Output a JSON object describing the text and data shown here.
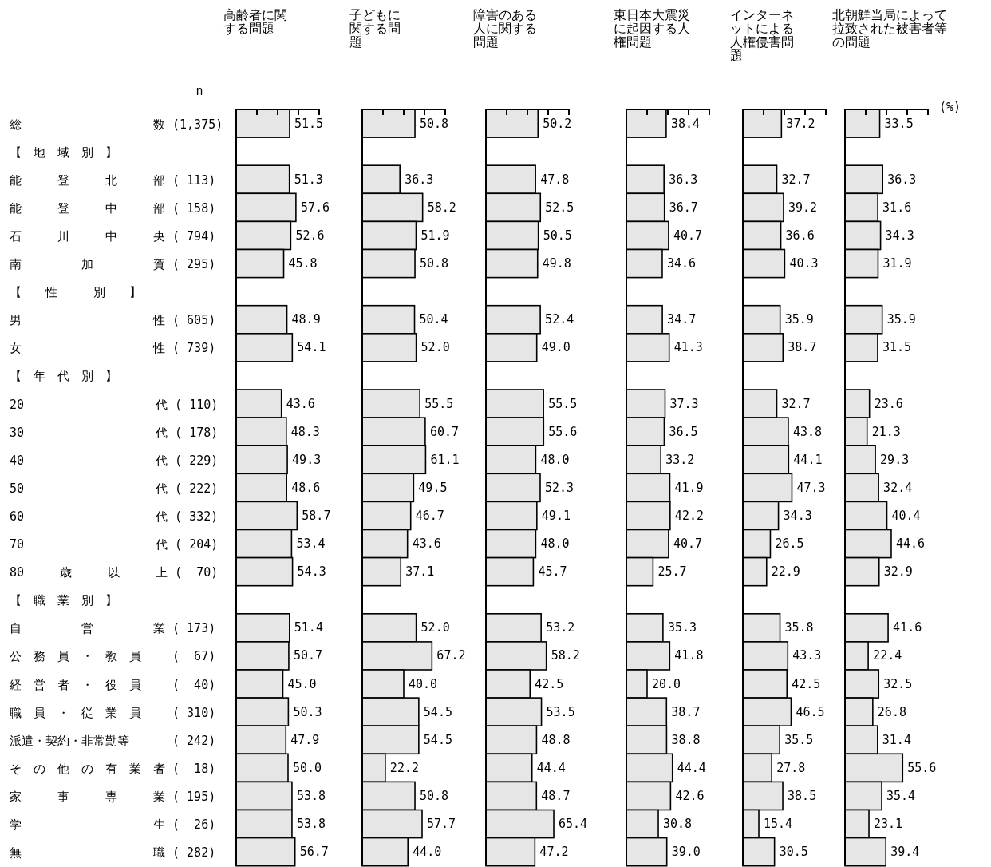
{
  "chart_data": [
    {
      "type": "bar",
      "orientation": "horizontal",
      "title": "高齢者に関する問題",
      "color": "#e6e6e6",
      "tick_labels": "y",
      "xlim": [
        0,
        80
      ],
      "xticks": [
        {
          "value": 0,
          "label": null
        },
        {
          "value": 20,
          "label": null
        },
        {
          "value": 40,
          "label": null
        },
        {
          "value": 60,
          "label": null
        },
        {
          "value": 80,
          "label": null
        }
      ],
      "annotations": [
        "n"
      ],
      "categories": [
        "総　　　　　　　　　　　数 (1,375)",
        "【　地　域　別　】",
        "能　　　登　　　北　　　部 ( 113)",
        "能　　　登　　　中　　　部 ( 158)",
        "石　　　川　　　中　　　央 ( 794)",
        "南　　　　　加　　　　　賀 ( 295)",
        "【　　性　　　別　　】",
        "男　　　　　　　　　　　性 ( 605)",
        "女　　　　　　　　　　　性 ( 739)",
        "【　年　代　別　】",
        "20　　　　　　　　　　　代 ( 110)",
        "30　　　　　　　　　　　代 ( 178)",
        "40　　　　　　　　　　　代 ( 229)",
        "50　　　　　　　　　　　代 ( 222)",
        "60　　　　　　　　　　　代 ( 332)",
        "70　　　　　　　　　　　代 ( 204)",
        "80　　　歳　　　以　　　上 (  70)",
        "【　職　業　別　】",
        "自　　　　　営　　　　　業 ( 173)",
        "公　務　員　・　教　員　　 (  67)",
        "経　営　者　・　役　員　　 (  40)",
        "職　員　・　従　業　員　　 ( 310)",
        "派遣・契約・非常勤等　　　 ( 242)",
        "そ　の　他　の　有　業　者 (  18)",
        "家　　　事　　　専　　　業 ( 195)",
        "学　　　　　　　　　　　生 (  26)",
        "無　　　　　　　　　　　職 ( 282)"
      ],
      "values": [
        51.5,
        null,
        51.3,
        57.6,
        52.6,
        45.8,
        null,
        48.9,
        54.1,
        null,
        43.6,
        48.3,
        49.3,
        48.6,
        58.7,
        53.4,
        54.3,
        null,
        51.4,
        50.7,
        45.0,
        50.3,
        47.9,
        50.0,
        53.8,
        53.8,
        56.7
      ],
      "value_labels": [
        "51.5",
        null,
        "51.3",
        "57.6",
        "52.6",
        "45.8",
        null,
        "48.9",
        "54.1",
        null,
        "43.6",
        "48.3",
        "49.3",
        "48.6",
        "58.7",
        "53.4",
        "54.3",
        null,
        "51.4",
        "50.7",
        "45.0",
        "50.3",
        "47.9",
        "50.0",
        "53.8",
        "53.8",
        "56.7"
      ]
    },
    {
      "type": "bar",
      "orientation": "horizontal",
      "title": "子どもに関する問題",
      "color": "#e6e6e6",
      "tick_labels": false,
      "xlim": [
        0,
        80
      ],
      "xticks": [
        {
          "value": 0,
          "label": null
        },
        {
          "value": 20,
          "label": null
        },
        {
          "value": 40,
          "label": null
        },
        {
          "value": 60,
          "label": null
        },
        {
          "value": 80,
          "label": null
        }
      ],
      "values": [
        50.8,
        null,
        36.3,
        58.2,
        51.9,
        50.8,
        null,
        50.4,
        52.0,
        null,
        55.5,
        60.7,
        61.1,
        49.5,
        46.7,
        43.6,
        37.1,
        null,
        52.0,
        67.2,
        40.0,
        54.5,
        54.5,
        22.2,
        50.8,
        57.7,
        44.0
      ],
      "value_labels": [
        "50.8",
        null,
        "36.3",
        "58.2",
        "51.9",
        "50.8",
        null,
        "50.4",
        "52.0",
        null,
        "55.5",
        "60.7",
        "61.1",
        "49.5",
        "46.7",
        "43.6",
        "37.1",
        null,
        "52.0",
        "67.2",
        "40.0",
        "54.5",
        "54.5",
        "22.2",
        "50.8",
        "57.7",
        "44.0"
      ]
    },
    {
      "type": "bar",
      "orientation": "horizontal",
      "title": "障害のある人に関する問題",
      "color": "#e6e6e6",
      "tick_labels": false,
      "xlim": [
        0,
        80
      ],
      "xticks": [
        {
          "value": 0,
          "label": null
        },
        {
          "value": 20,
          "label": null
        },
        {
          "value": 40,
          "label": null
        },
        {
          "value": 60,
          "label": null
        },
        {
          "value": 80,
          "label": null
        }
      ],
      "values": [
        50.2,
        null,
        47.8,
        52.5,
        50.5,
        49.8,
        null,
        52.4,
        49.0,
        null,
        55.5,
        55.6,
        48.0,
        52.3,
        49.1,
        48.0,
        45.7,
        null,
        53.2,
        58.2,
        42.5,
        53.5,
        48.8,
        44.4,
        48.7,
        65.4,
        47.2
      ],
      "value_labels": [
        "50.2",
        null,
        "47.8",
        "52.5",
        "50.5",
        "49.8",
        null,
        "52.4",
        "49.0",
        null,
        "55.5",
        "55.6",
        "48.0",
        "52.3",
        "49.1",
        "48.0",
        "45.7",
        null,
        "53.2",
        "58.2",
        "42.5",
        "53.5",
        "48.8",
        "44.4",
        "48.7",
        "65.4",
        "47.2"
      ]
    },
    {
      "type": "bar",
      "orientation": "horizontal",
      "title": "東日本大震災に起因する人権問題",
      "color": "#e6e6e6",
      "tick_labels": false,
      "xlim": [
        0,
        80
      ],
      "xticks": [
        {
          "value": 0,
          "label": null
        },
        {
          "value": 20,
          "label": null
        },
        {
          "value": 40,
          "label": null
        },
        {
          "value": 60,
          "label": null
        },
        {
          "value": 80,
          "label": null
        }
      ],
      "values": [
        38.4,
        null,
        36.3,
        36.7,
        40.7,
        34.6,
        null,
        34.7,
        41.3,
        null,
        37.3,
        36.5,
        33.2,
        41.9,
        42.2,
        40.7,
        25.7,
        null,
        35.3,
        41.8,
        20.0,
        38.7,
        38.8,
        44.4,
        42.6,
        30.8,
        39.0
      ],
      "value_labels": [
        "38.4",
        null,
        "36.3",
        "36.7",
        "40.7",
        "34.6",
        null,
        "34.7",
        "41.3",
        null,
        "37.3",
        "36.5",
        "33.2",
        "41.9",
        "42.2",
        "40.7",
        "25.7",
        null,
        "35.3",
        "41.8",
        "20.0",
        "38.7",
        "38.8",
        "44.4",
        "42.6",
        "30.8",
        "39.0"
      ]
    },
    {
      "type": "bar",
      "orientation": "horizontal",
      "title": "インターネットによる人権侵害問題",
      "color": "#e6e6e6",
      "tick_labels": false,
      "xlim": [
        0,
        80
      ],
      "xticks": [
        {
          "value": 0,
          "label": null
        },
        {
          "value": 20,
          "label": null
        },
        {
          "value": 40,
          "label": null
        },
        {
          "value": 60,
          "label": null
        },
        {
          "value": 80,
          "label": null
        }
      ],
      "values": [
        37.2,
        null,
        32.7,
        39.2,
        36.6,
        40.3,
        null,
        35.9,
        38.7,
        null,
        32.7,
        43.8,
        44.1,
        47.3,
        34.3,
        26.5,
        22.9,
        null,
        35.8,
        43.3,
        42.5,
        46.5,
        35.5,
        27.8,
        38.5,
        15.4,
        30.5
      ],
      "value_labels": [
        "37.2",
        null,
        "32.7",
        "39.2",
        "36.6",
        "40.3",
        null,
        "35.9",
        "38.7",
        null,
        "32.7",
        "43.8",
        "44.1",
        "47.3",
        "34.3",
        "26.5",
        "22.9",
        null,
        "35.8",
        "43.3",
        "42.5",
        "46.5",
        "35.5",
        "27.8",
        "38.5",
        "15.4",
        "30.5"
      ]
    },
    {
      "type": "bar",
      "orientation": "horizontal",
      "title": "北朝鮮当局によって拉致された被害者等の問題",
      "color": "#e6e6e6",
      "tick_labels": false,
      "xlim": [
        0,
        80
      ],
      "xticks": [
        {
          "value": 0,
          "label": null
        },
        {
          "value": 20,
          "label": null
        },
        {
          "value": 40,
          "label": null
        },
        {
          "value": 60,
          "label": null
        },
        {
          "value": 80,
          "label": null
        }
      ],
      "annotations": [
        "(%)"
      ],
      "values": [
        33.5,
        null,
        36.3,
        31.6,
        34.3,
        31.9,
        null,
        35.9,
        31.5,
        null,
        23.6,
        21.3,
        29.3,
        32.4,
        40.4,
        44.6,
        32.9,
        null,
        41.6,
        22.4,
        32.5,
        26.8,
        31.4,
        55.6,
        35.4,
        23.1,
        39.4
      ],
      "value_labels": [
        "33.5",
        null,
        "36.3",
        "31.6",
        "34.3",
        "31.9",
        null,
        "35.9",
        "31.5",
        null,
        "23.6",
        "21.3",
        "29.3",
        "32.4",
        "40.4",
        "44.6",
        "32.9",
        null,
        "41.6",
        "22.4",
        "32.5",
        "26.8",
        "31.4",
        "55.6",
        "35.4",
        "23.1",
        "39.4"
      ]
    }
  ]
}
